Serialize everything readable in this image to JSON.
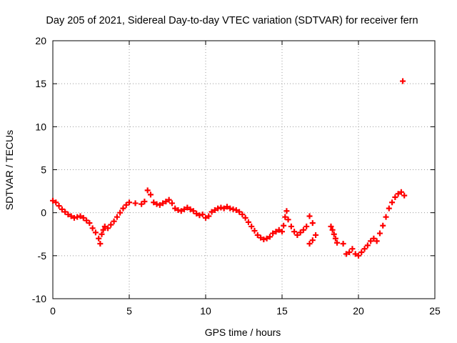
{
  "chart_data": {
    "type": "scatter",
    "title": "Day 205 of 2021, Sidereal Day-to-day VTEC variation (SDTVAR) for receiver fern",
    "xlabel": "GPS time / hours",
    "ylabel": "SDTVAR / TECUs",
    "xlim": [
      0,
      25
    ],
    "ylim": [
      -10,
      20
    ],
    "xticks": [
      0,
      5,
      10,
      15,
      20,
      25
    ],
    "yticks": [
      -10,
      -5,
      0,
      5,
      10,
      15,
      20
    ],
    "grid": true,
    "marker": "+",
    "color": "#ff0000",
    "series": [
      {
        "name": "SDTVAR",
        "points": [
          [
            0.0,
            1.4
          ],
          [
            0.2,
            1.2
          ],
          [
            0.4,
            0.8
          ],
          [
            0.6,
            0.4
          ],
          [
            0.8,
            0.1
          ],
          [
            1.0,
            -0.2
          ],
          [
            1.2,
            -0.4
          ],
          [
            1.4,
            -0.6
          ],
          [
            1.6,
            -0.5
          ],
          [
            1.8,
            -0.4
          ],
          [
            2.0,
            -0.6
          ],
          [
            2.2,
            -0.9
          ],
          [
            2.4,
            -1.2
          ],
          [
            2.6,
            -1.8
          ],
          [
            2.8,
            -2.3
          ],
          [
            3.0,
            -3.0
          ],
          [
            3.1,
            -3.6
          ],
          [
            3.2,
            -2.5
          ],
          [
            3.3,
            -2.0
          ],
          [
            3.4,
            -1.6
          ],
          [
            3.6,
            -1.8
          ],
          [
            3.8,
            -1.4
          ],
          [
            4.0,
            -1.0
          ],
          [
            4.2,
            -0.5
          ],
          [
            4.4,
            0.0
          ],
          [
            4.6,
            0.5
          ],
          [
            4.8,
            0.9
          ],
          [
            5.0,
            1.2
          ],
          [
            5.4,
            1.1
          ],
          [
            5.8,
            1.0
          ],
          [
            6.0,
            1.3
          ],
          [
            6.2,
            2.6
          ],
          [
            6.4,
            2.1
          ],
          [
            6.6,
            1.2
          ],
          [
            6.8,
            1.0
          ],
          [
            7.0,
            0.9
          ],
          [
            7.2,
            1.1
          ],
          [
            7.4,
            1.3
          ],
          [
            7.6,
            1.5
          ],
          [
            7.8,
            1.1
          ],
          [
            8.0,
            0.5
          ],
          [
            8.2,
            0.3
          ],
          [
            8.4,
            0.2
          ],
          [
            8.6,
            0.4
          ],
          [
            8.8,
            0.6
          ],
          [
            9.0,
            0.4
          ],
          [
            9.2,
            0.2
          ],
          [
            9.4,
            -0.1
          ],
          [
            9.6,
            -0.3
          ],
          [
            9.8,
            -0.2
          ],
          [
            10.0,
            -0.6
          ],
          [
            10.2,
            -0.4
          ],
          [
            10.4,
            0.1
          ],
          [
            10.6,
            0.3
          ],
          [
            10.8,
            0.5
          ],
          [
            11.0,
            0.6
          ],
          [
            11.2,
            0.5
          ],
          [
            11.4,
            0.7
          ],
          [
            11.6,
            0.5
          ],
          [
            11.8,
            0.4
          ],
          [
            12.0,
            0.3
          ],
          [
            12.2,
            0.1
          ],
          [
            12.4,
            -0.2
          ],
          [
            12.6,
            -0.6
          ],
          [
            12.8,
            -1.1
          ],
          [
            13.0,
            -1.6
          ],
          [
            13.2,
            -2.1
          ],
          [
            13.4,
            -2.6
          ],
          [
            13.6,
            -2.9
          ],
          [
            13.8,
            -3.1
          ],
          [
            14.0,
            -3.0
          ],
          [
            14.2,
            -2.8
          ],
          [
            14.4,
            -2.4
          ],
          [
            14.6,
            -2.2
          ],
          [
            14.8,
            -2.0
          ],
          [
            15.0,
            -2.2
          ],
          [
            15.1,
            -1.5
          ],
          [
            15.2,
            -0.5
          ],
          [
            15.3,
            0.2
          ],
          [
            15.4,
            -0.8
          ],
          [
            15.6,
            -1.6
          ],
          [
            15.8,
            -2.2
          ],
          [
            16.0,
            -2.6
          ],
          [
            16.2,
            -2.3
          ],
          [
            16.4,
            -2.0
          ],
          [
            16.6,
            -1.6
          ],
          [
            16.8,
            -0.4
          ],
          [
            17.0,
            -1.2
          ],
          [
            17.2,
            -2.6
          ],
          [
            17.0,
            -3.2
          ],
          [
            16.8,
            -3.6
          ],
          [
            18.2,
            -1.6
          ],
          [
            18.3,
            -2.0
          ],
          [
            18.4,
            -2.5
          ],
          [
            18.5,
            -3.0
          ],
          [
            18.6,
            -3.5
          ],
          [
            19.0,
            -3.6
          ],
          [
            19.2,
            -4.8
          ],
          [
            19.4,
            -4.6
          ],
          [
            19.6,
            -4.2
          ],
          [
            19.8,
            -4.8
          ],
          [
            20.0,
            -5.0
          ],
          [
            20.2,
            -4.6
          ],
          [
            20.4,
            -4.2
          ],
          [
            20.6,
            -3.8
          ],
          [
            20.8,
            -3.3
          ],
          [
            21.0,
            -3.0
          ],
          [
            21.2,
            -3.3
          ],
          [
            21.4,
            -2.4
          ],
          [
            21.6,
            -1.5
          ],
          [
            21.8,
            -0.5
          ],
          [
            22.0,
            0.5
          ],
          [
            22.2,
            1.2
          ],
          [
            22.4,
            1.8
          ],
          [
            22.6,
            2.2
          ],
          [
            22.8,
            2.4
          ],
          [
            23.0,
            2.0
          ],
          [
            22.9,
            15.3
          ]
        ]
      }
    ]
  }
}
